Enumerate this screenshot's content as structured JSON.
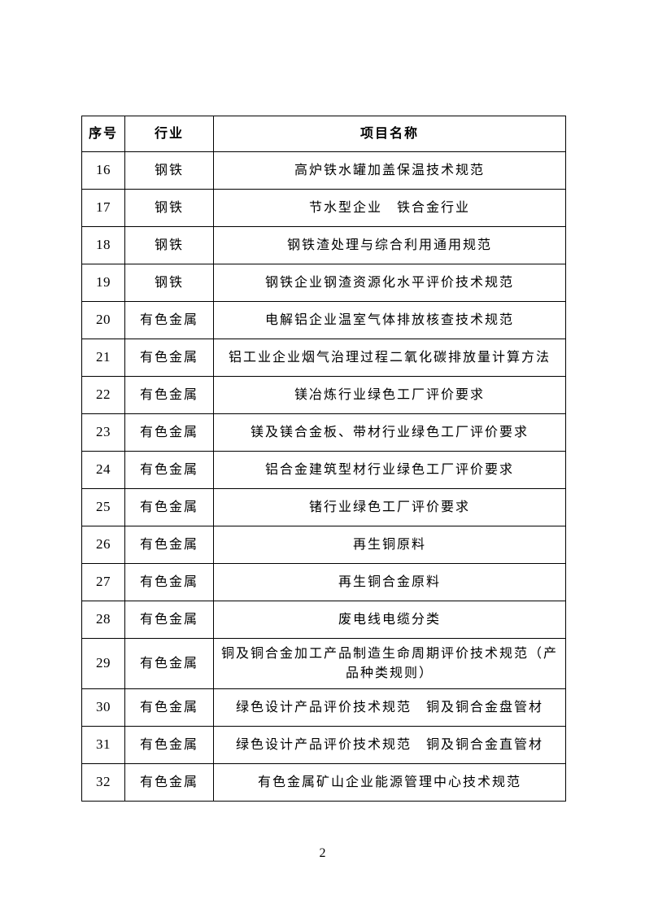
{
  "page": {
    "number": "2"
  },
  "table": {
    "headers": [
      "序号",
      "行业",
      "项目名称"
    ],
    "rows": [
      {
        "no": "16",
        "industry": "钢铁",
        "project": "高炉铁水罐加盖保温技术规范"
      },
      {
        "no": "17",
        "industry": "钢铁",
        "project": "节水型企业　铁合金行业"
      },
      {
        "no": "18",
        "industry": "钢铁",
        "project": "钢铁渣处理与综合利用通用规范"
      },
      {
        "no": "19",
        "industry": "钢铁",
        "project": "钢铁企业钢渣资源化水平评价技术规范"
      },
      {
        "no": "20",
        "industry": "有色金属",
        "project": "电解铝企业温室气体排放核查技术规范"
      },
      {
        "no": "21",
        "industry": "有色金属",
        "project": "铝工业企业烟气治理过程二氧化碳排放量计算方法"
      },
      {
        "no": "22",
        "industry": "有色金属",
        "project": "镁冶炼行业绿色工厂评价要求"
      },
      {
        "no": "23",
        "industry": "有色金属",
        "project": "镁及镁合金板、带材行业绿色工厂评价要求"
      },
      {
        "no": "24",
        "industry": "有色金属",
        "project": "铝合金建筑型材行业绿色工厂评价要求"
      },
      {
        "no": "25",
        "industry": "有色金属",
        "project": "锗行业绿色工厂评价要求"
      },
      {
        "no": "26",
        "industry": "有色金属",
        "project": "再生铜原料"
      },
      {
        "no": "27",
        "industry": "有色金属",
        "project": "再生铜合金原料"
      },
      {
        "no": "28",
        "industry": "有色金属",
        "project": "废电线电缆分类"
      },
      {
        "no": "29",
        "industry": "有色金属",
        "project": "铜及铜合金加工产品制造生命周期评价技术规范（产品种类规则）",
        "tall": true
      },
      {
        "no": "30",
        "industry": "有色金属",
        "project": "绿色设计产品评价技术规范　铜及铜合金盘管材"
      },
      {
        "no": "31",
        "industry": "有色金属",
        "project": "绿色设计产品评价技术规范　铜及铜合金直管材"
      },
      {
        "no": "32",
        "industry": "有色金属",
        "project": "有色金属矿山企业能源管理中心技术规范"
      }
    ]
  }
}
